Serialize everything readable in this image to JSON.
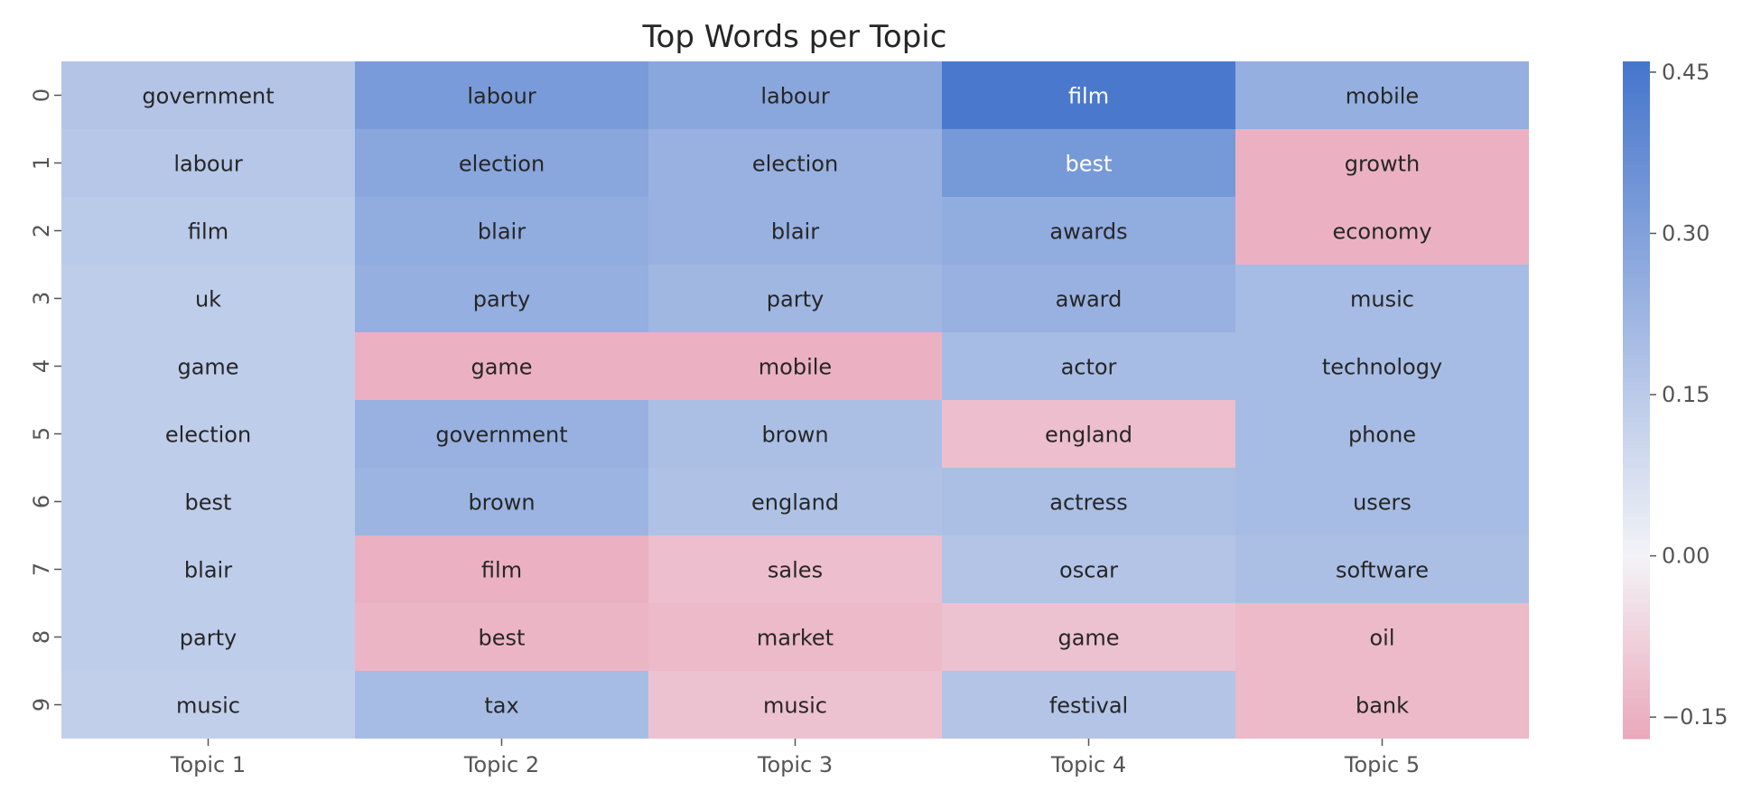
{
  "chart_data": {
    "type": "heatmap",
    "title": "Top Words per Topic",
    "x_labels": [
      "Topic 1",
      "Topic 2",
      "Topic 3",
      "Topic 4",
      "Topic 5"
    ],
    "y_labels": [
      "0",
      "1",
      "2",
      "3",
      "4",
      "5",
      "6",
      "7",
      "8",
      "9"
    ],
    "annotations": [
      [
        "government",
        "labour",
        "labour",
        "film",
        "mobile"
      ],
      [
        "labour",
        "election",
        "election",
        "best",
        "growth"
      ],
      [
        "film",
        "blair",
        "blair",
        "awards",
        "economy"
      ],
      [
        "uk",
        "party",
        "party",
        "award",
        "music"
      ],
      [
        "game",
        "game",
        "mobile",
        "actor",
        "technology"
      ],
      [
        "election",
        "government",
        "brown",
        "england",
        "phone"
      ],
      [
        "best",
        "brown",
        "england",
        "actress",
        "users"
      ],
      [
        "blair",
        "film",
        "sales",
        "oscar",
        "software"
      ],
      [
        "party",
        "best",
        "market",
        "game",
        "oil"
      ],
      [
        "music",
        "tax",
        "music",
        "festival",
        "bank"
      ]
    ],
    "values": [
      [
        0.17,
        0.32,
        0.28,
        0.45,
        0.25
      ],
      [
        0.16,
        0.28,
        0.24,
        0.33,
        -0.15
      ],
      [
        0.15,
        0.26,
        0.24,
        0.26,
        -0.15
      ],
      [
        0.14,
        0.25,
        0.22,
        0.24,
        0.2
      ],
      [
        0.14,
        -0.15,
        -0.15,
        0.2,
        0.2
      ],
      [
        0.14,
        0.24,
        0.19,
        -0.12,
        0.2
      ],
      [
        0.14,
        0.23,
        0.18,
        0.19,
        0.2
      ],
      [
        0.14,
        -0.15,
        -0.12,
        0.17,
        0.19
      ],
      [
        0.14,
        -0.14,
        -0.13,
        -0.11,
        -0.13
      ],
      [
        0.13,
        0.2,
        -0.11,
        0.17,
        -0.13
      ]
    ],
    "colorbar": {
      "vmin": -0.17,
      "vmax": 0.46,
      "ticks": [
        0.45,
        0.3,
        0.15,
        0.0,
        -0.15
      ],
      "tick_labels": [
        "0.45",
        "0.30",
        "0.15",
        "0.00",
        "−0.15"
      ]
    },
    "colors": {
      "positive": "#4575cc",
      "negative": "#eaa8bb",
      "neutral": "#f3f3f7"
    },
    "grid": false
  }
}
